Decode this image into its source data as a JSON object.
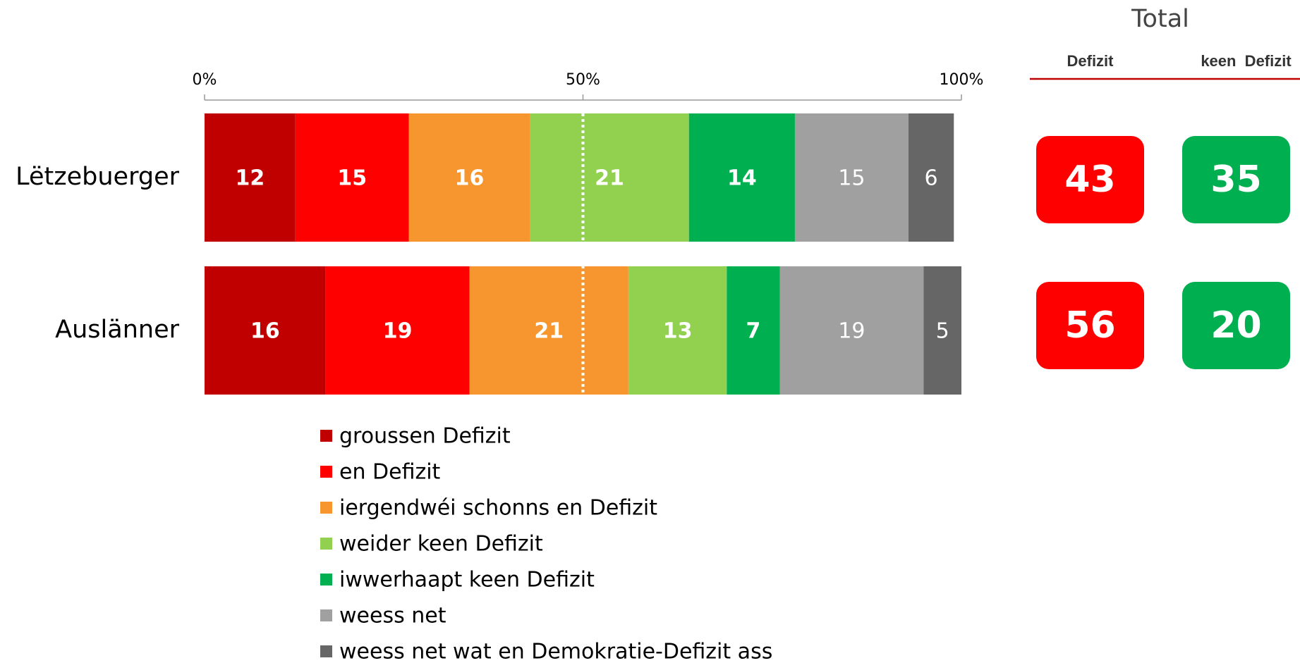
{
  "chart_data": {
    "type": "stacked-bar-horizontal",
    "categories": [
      "Lëtzebuerger",
      "Auslänner"
    ],
    "series": [
      {
        "name": "groussen Defizit",
        "color": "#c00000",
        "label_bold": true,
        "values": [
          12,
          16
        ]
      },
      {
        "name": "en Defizit",
        "color": "#ff0000",
        "label_bold": true,
        "values": [
          15,
          19
        ]
      },
      {
        "name": "iergendwéi schonns en Defizit",
        "color": "#f7962e",
        "label_bold": true,
        "values": [
          16,
          21
        ]
      },
      {
        "name": "weider keen Defizit",
        "color": "#92d050",
        "label_bold": true,
        "values": [
          21,
          13
        ]
      },
      {
        "name": "iwwerhaapt keen Defizit",
        "color": "#00b050",
        "label_bold": true,
        "values": [
          14,
          7
        ]
      },
      {
        "name": "weess net",
        "color": "#a0a0a0",
        "label_bold": false,
        "values": [
          15,
          19
        ]
      },
      {
        "name": "weess net wat en Demokratie-Defizit ass",
        "color": "#666666",
        "label_bold": false,
        "values": [
          6,
          5
        ]
      }
    ],
    "xlim": [
      0,
      100
    ],
    "xticks": [
      {
        "value": 0,
        "label": "0%"
      },
      {
        "value": 50,
        "label": "50%"
      },
      {
        "value": 100,
        "label": "100%"
      }
    ],
    "reference_line": 50
  },
  "totals": {
    "title": "Total",
    "columns": [
      "Defizit",
      "keen  Defizit"
    ],
    "colors": [
      "#ff0000",
      "#00b050"
    ],
    "values": [
      [
        43,
        35
      ],
      [
        56,
        20
      ]
    ]
  }
}
